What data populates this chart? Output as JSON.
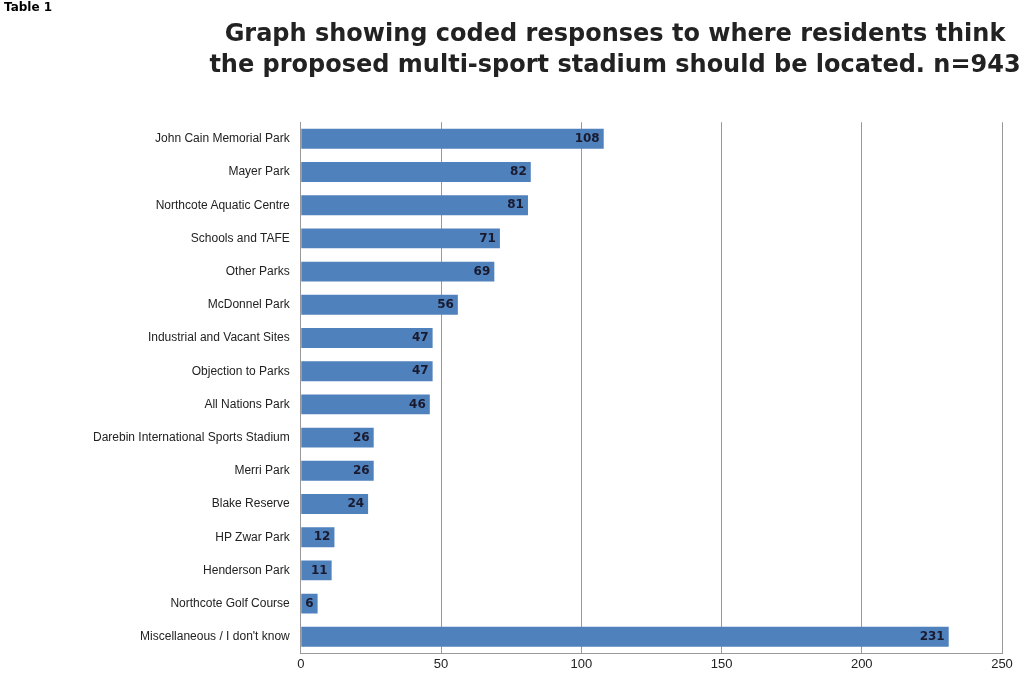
{
  "chart_data": {
    "type": "bar",
    "orientation": "horizontal",
    "title": "Graph showing coded responses to where residents think the proposed multi-sport stadium should be located. n=943",
    "annotations": [
      "Table 1"
    ],
    "categories": [
      "John Cain Memorial Park",
      "Mayer Park",
      "Northcote Aquatic Centre",
      "Schools and TAFE",
      "Other Parks",
      "McDonnel Park",
      "Industrial and Vacant Sites",
      "Objection to Parks",
      "All Nations Park",
      "Darebin International Sports Stadium",
      "Merri Park",
      "Blake Reserve",
      "HP Zwar Park",
      "Henderson Park",
      "Northcote Golf Course",
      "Miscellaneous / I don't know"
    ],
    "values": [
      108,
      82,
      81,
      71,
      69,
      56,
      47,
      47,
      46,
      26,
      26,
      24,
      12,
      11,
      6,
      231
    ],
    "color": "#4f81bd",
    "xlim": [
      0,
      250
    ],
    "xticks": [
      0,
      50,
      100,
      150,
      200,
      250
    ],
    "grid": "x",
    "legend": false,
    "data_labels": true
  }
}
